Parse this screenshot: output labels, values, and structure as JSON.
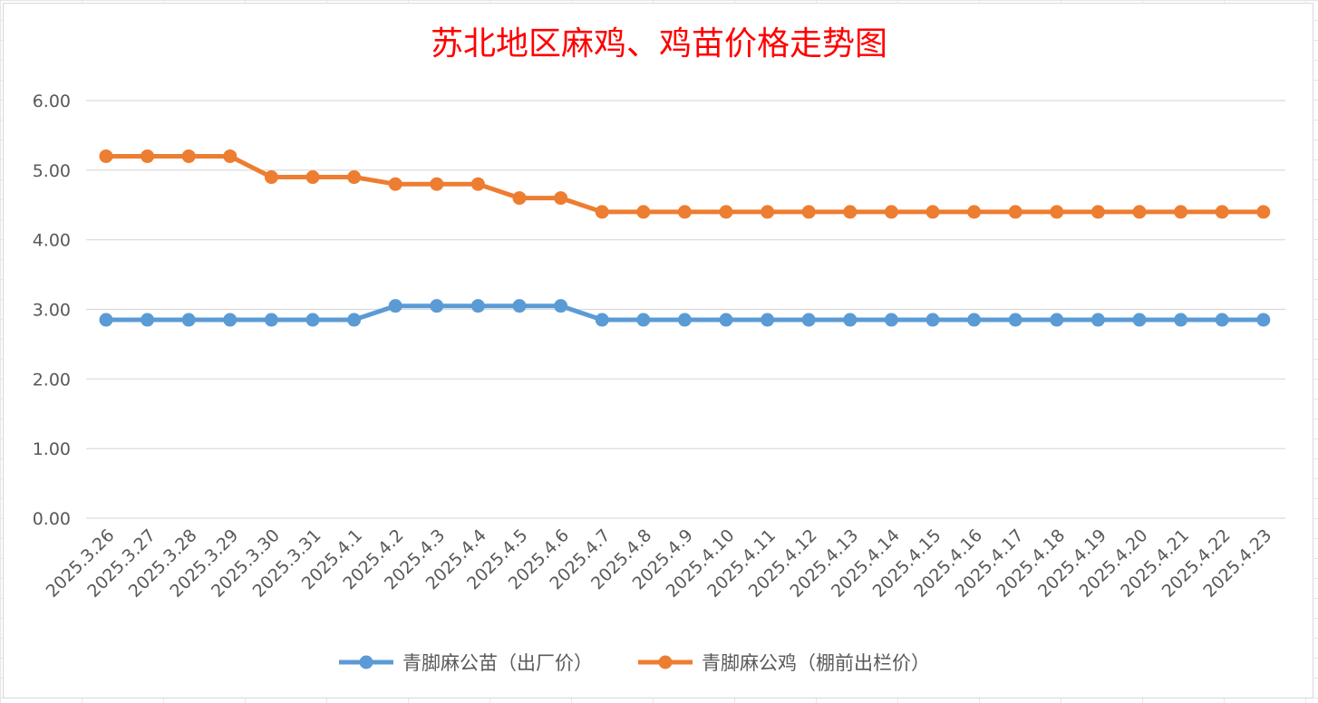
{
  "chart_data": {
    "type": "line",
    "title": "苏北地区麻鸡、鸡苗价格走势图",
    "categories": [
      "2025.3.26",
      "2025.3.27",
      "2025.3.28",
      "2025.3.29",
      "2025.3.30",
      "2025.3.31",
      "2025.4.1",
      "2025.4.2",
      "2025.4.3",
      "2025.4.4",
      "2025.4.5",
      "2025.4.6",
      "2025.4.7",
      "2025.4.8",
      "2025.4.9",
      "2025.4.10",
      "2025.4.11",
      "2025.4.12",
      "2025.4.13",
      "2025.4.14",
      "2025.4.15",
      "2025.4.16",
      "2025.4.17",
      "2025.4.18",
      "2025.4.19",
      "2025.4.20",
      "2025.4.21",
      "2025.4.22",
      "2025.4.23"
    ],
    "series": [
      {
        "name": "青脚麻公苗（出厂价）",
        "color": "#5b9bd5",
        "values": [
          2.85,
          2.85,
          2.85,
          2.85,
          2.85,
          2.85,
          2.85,
          3.05,
          3.05,
          3.05,
          3.05,
          3.05,
          2.85,
          2.85,
          2.85,
          2.85,
          2.85,
          2.85,
          2.85,
          2.85,
          2.85,
          2.85,
          2.85,
          2.85,
          2.85,
          2.85,
          2.85,
          2.85,
          2.85
        ]
      },
      {
        "name": "青脚麻公鸡（棚前出栏价）",
        "color": "#ed7d31",
        "values": [
          5.2,
          5.2,
          5.2,
          5.2,
          4.9,
          4.9,
          4.9,
          4.8,
          4.8,
          4.8,
          4.6,
          4.6,
          4.4,
          4.4,
          4.4,
          4.4,
          4.4,
          4.4,
          4.4,
          4.4,
          4.4,
          4.4,
          4.4,
          4.4,
          4.4,
          4.4,
          4.4,
          4.4,
          4.4
        ]
      }
    ],
    "ylim": [
      0,
      6
    ],
    "yticks": [
      "0.00",
      "1.00",
      "2.00",
      "3.00",
      "4.00",
      "5.00",
      "6.00"
    ],
    "xlabel": "",
    "ylabel": "",
    "grid": true,
    "legend_position": "bottom"
  }
}
